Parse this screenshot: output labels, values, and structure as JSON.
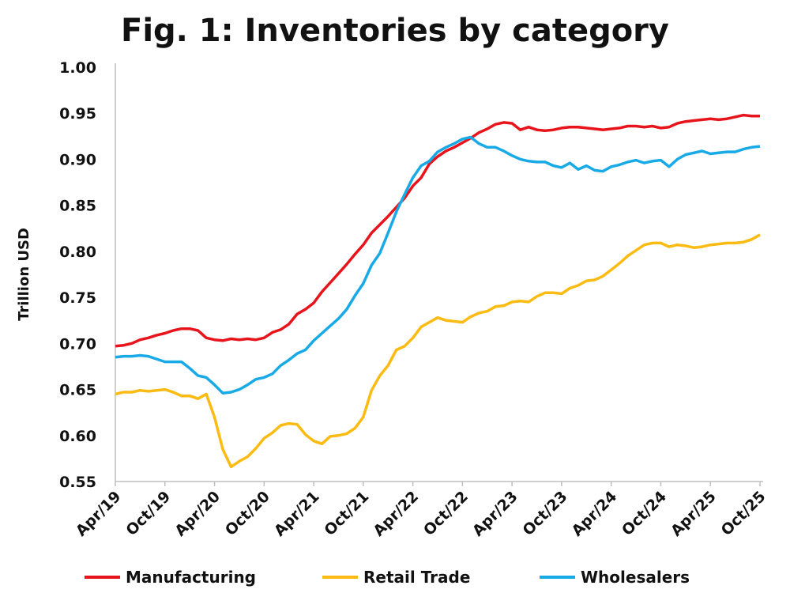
{
  "chart_data": {
    "type": "line",
    "title": "Fig. 1: Inventories by category",
    "xlabel": "",
    "ylabel": "Trillion USD",
    "ylim": [
      0.55,
      1.0
    ],
    "yticks": [
      "0.55",
      "0.60",
      "0.65",
      "0.70",
      "0.75",
      "0.80",
      "0.85",
      "0.90",
      "0.95",
      "1.00"
    ],
    "xticks": [
      "Apr/19",
      "Oct/19",
      "Apr/20",
      "Oct/20",
      "Apr/21",
      "Oct/21",
      "Apr/22",
      "Oct/22",
      "Apr/23",
      "Oct/23",
      "Apr/24",
      "Oct/24",
      "Apr/25",
      "Oct/25"
    ],
    "x_start": "Apr/19",
    "x_frequency": "monthly",
    "grid": false,
    "legend_position": "bottom",
    "series": [
      {
        "name": "Manufacturing",
        "color": "#e8141c",
        "values": [
          0.697,
          0.698,
          0.7,
          0.704,
          0.706,
          0.709,
          0.711,
          0.714,
          0.716,
          0.716,
          0.714,
          0.706,
          0.704,
          0.703,
          0.705,
          0.704,
          0.705,
          0.704,
          0.706,
          0.712,
          0.715,
          0.721,
          0.732,
          0.737,
          0.744,
          0.756,
          0.766,
          0.776,
          0.786,
          0.797,
          0.807,
          0.82,
          0.829,
          0.838,
          0.848,
          0.858,
          0.871,
          0.88,
          0.895,
          0.903,
          0.909,
          0.913,
          0.918,
          0.923,
          0.929,
          0.933,
          0.938,
          0.94,
          0.939,
          0.932,
          0.935,
          0.932,
          0.931,
          0.932,
          0.934,
          0.935,
          0.935,
          0.934,
          0.933,
          0.932,
          0.933,
          0.934,
          0.936,
          0.936,
          0.935,
          0.936,
          0.934,
          0.935,
          0.939,
          0.941,
          0.942,
          0.943,
          0.944,
          0.943,
          0.944,
          0.946,
          0.948,
          0.947,
          0.947
        ]
      },
      {
        "name": "Retail Trade",
        "color": "#fbbb12",
        "values": [
          0.645,
          0.647,
          0.647,
          0.649,
          0.648,
          0.649,
          0.65,
          0.647,
          0.643,
          0.643,
          0.64,
          0.645,
          0.62,
          0.585,
          0.566,
          0.572,
          0.577,
          0.586,
          0.597,
          0.603,
          0.611,
          0.613,
          0.612,
          0.601,
          0.594,
          0.591,
          0.599,
          0.6,
          0.602,
          0.608,
          0.62,
          0.649,
          0.665,
          0.676,
          0.693,
          0.697,
          0.706,
          0.718,
          0.723,
          0.728,
          0.725,
          0.724,
          0.723,
          0.729,
          0.733,
          0.735,
          0.74,
          0.741,
          0.745,
          0.746,
          0.745,
          0.751,
          0.755,
          0.755,
          0.754,
          0.76,
          0.763,
          0.768,
          0.769,
          0.773,
          0.78,
          0.787,
          0.795,
          0.801,
          0.807,
          0.809,
          0.809,
          0.805,
          0.807,
          0.806,
          0.804,
          0.805,
          0.807,
          0.808,
          0.809,
          0.809,
          0.81,
          0.813,
          0.818
        ]
      },
      {
        "name": "Wholesalers",
        "color": "#18aae6",
        "values": [
          0.685,
          0.686,
          0.686,
          0.687,
          0.686,
          0.683,
          0.68,
          0.68,
          0.68,
          0.673,
          0.665,
          0.663,
          0.655,
          0.646,
          0.647,
          0.65,
          0.655,
          0.661,
          0.663,
          0.667,
          0.676,
          0.682,
          0.689,
          0.693,
          0.703,
          0.711,
          0.719,
          0.727,
          0.737,
          0.752,
          0.765,
          0.785,
          0.798,
          0.82,
          0.843,
          0.862,
          0.88,
          0.893,
          0.898,
          0.908,
          0.913,
          0.917,
          0.922,
          0.924,
          0.917,
          0.913,
          0.913,
          0.909,
          0.904,
          0.9,
          0.898,
          0.897,
          0.897,
          0.893,
          0.891,
          0.896,
          0.889,
          0.893,
          0.888,
          0.887,
          0.892,
          0.894,
          0.897,
          0.899,
          0.896,
          0.898,
          0.899,
          0.892,
          0.9,
          0.905,
          0.907,
          0.909,
          0.906,
          0.907,
          0.908,
          0.908,
          0.911,
          0.913,
          0.914
        ]
      }
    ]
  }
}
